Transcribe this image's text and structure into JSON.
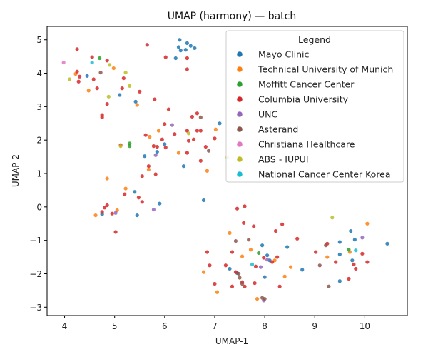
{
  "chart_data": {
    "type": "scatter",
    "title": "UMAP (harmony) — batch",
    "xlabel": "UMAP-1",
    "ylabel": "UMAP-2",
    "xlim": [
      3.65,
      10.85
    ],
    "ylim": [
      -3.25,
      5.4
    ],
    "xticks": [
      4,
      5,
      6,
      7,
      8,
      9,
      10
    ],
    "yticks": [
      -3,
      -2,
      -1,
      0,
      1,
      2,
      3,
      4,
      5
    ],
    "grid": false,
    "legend": {
      "title": "Legend",
      "placement": "top-right"
    },
    "series": [
      {
        "name": "Mayo Clinic",
        "color": "#1f77b4",
        "points": [
          [
            6.3,
            5.0
          ],
          [
            6.32,
            4.68
          ],
          [
            6.45,
            4.9
          ],
          [
            6.52,
            4.82
          ],
          [
            6.6,
            4.75
          ],
          [
            6.22,
            4.45
          ],
          [
            6.42,
            4.7
          ],
          [
            6.28,
            4.78
          ],
          [
            4.45,
            3.92
          ],
          [
            5.1,
            3.35
          ],
          [
            5.42,
            3.15
          ],
          [
            5.6,
            1.52
          ],
          [
            5.85,
            1.65
          ],
          [
            6.38,
            1.22
          ],
          [
            6.78,
            0.2
          ],
          [
            6.0,
            1.88
          ],
          [
            5.9,
            0.1
          ],
          [
            5.4,
            0.45
          ],
          [
            5.45,
            -0.25
          ],
          [
            4.75,
            -0.22
          ],
          [
            7.1,
            2.5
          ],
          [
            7.3,
            -1.85
          ],
          [
            7.45,
            -1.98
          ],
          [
            7.95,
            -1.15
          ],
          [
            8.05,
            -1.45
          ],
          [
            8.45,
            -1.2
          ],
          [
            8.75,
            -1.88
          ],
          [
            9.5,
            -1.05
          ],
          [
            9.5,
            -1.42
          ],
          [
            9.72,
            -0.72
          ],
          [
            9.8,
            -0.98
          ],
          [
            9.75,
            -1.6
          ],
          [
            10.45,
            -1.1
          ],
          [
            9.5,
            -2.22
          ],
          [
            8.0,
            -2.1
          ],
          [
            8.1,
            -1.6
          ]
        ]
      },
      {
        "name": "Technical University of Munich",
        "color": "#ff7f0e",
        "points": [
          [
            4.22,
            3.98
          ],
          [
            4.48,
            3.48
          ],
          [
            4.98,
            4.15
          ],
          [
            5.45,
            3.05
          ],
          [
            5.88,
            2.28
          ],
          [
            5.7,
            2.1
          ],
          [
            6.28,
            1.62
          ],
          [
            6.85,
            1.08
          ],
          [
            7.02,
            2.32
          ],
          [
            4.85,
            0.85
          ],
          [
            5.22,
            0.55
          ],
          [
            5.05,
            -0.1
          ],
          [
            4.62,
            -0.25
          ],
          [
            5.68,
            1.12
          ],
          [
            7.05,
            -2.55
          ],
          [
            7.3,
            -0.78
          ],
          [
            7.55,
            -1.48
          ],
          [
            7.72,
            -1.28
          ],
          [
            7.85,
            -2.75
          ],
          [
            8.2,
            -1.6
          ],
          [
            8.4,
            -2.08
          ],
          [
            8.52,
            -1.8
          ],
          [
            9.25,
            -1.5
          ],
          [
            9.7,
            -1.35
          ],
          [
            10.05,
            -0.5
          ],
          [
            6.78,
            -1.95
          ]
        ]
      },
      {
        "name": "Moffitt Cancer Center",
        "color": "#2ca02c",
        "points": [
          [
            4.7,
            4.45
          ],
          [
            5.3,
            1.9
          ],
          [
            5.3,
            1.82
          ],
          [
            7.88,
            -1.38
          ],
          [
            9.68,
            -1.28
          ]
        ]
      },
      {
        "name": "Columbia University",
        "color": "#d62728",
        "points": [
          [
            4.25,
            4.72
          ],
          [
            4.55,
            4.48
          ],
          [
            4.85,
            4.38
          ],
          [
            4.25,
            4.05
          ],
          [
            4.3,
            3.9
          ],
          [
            4.58,
            3.82
          ],
          [
            4.28,
            3.75
          ],
          [
            4.65,
            3.55
          ],
          [
            5.15,
            3.55
          ],
          [
            5.18,
            3.85
          ],
          [
            5.5,
            3.45
          ],
          [
            5.8,
            3.22
          ],
          [
            4.85,
            3.08
          ],
          [
            4.75,
            2.75
          ],
          [
            4.75,
            2.68
          ],
          [
            6.08,
            2.92
          ],
          [
            6.55,
            2.7
          ],
          [
            6.65,
            2.8
          ],
          [
            6.0,
            2.48
          ],
          [
            6.2,
            2.18
          ],
          [
            6.45,
            2.28
          ],
          [
            6.65,
            2.28
          ],
          [
            6.72,
            2.28
          ],
          [
            5.62,
            2.15
          ],
          [
            5.95,
            2.02
          ],
          [
            6.58,
            2.02
          ],
          [
            6.48,
            1.98
          ],
          [
            7.0,
            2.05
          ],
          [
            6.82,
            1.8
          ],
          [
            5.85,
            1.8
          ],
          [
            6.02,
            1.78
          ],
          [
            5.78,
            1.82
          ],
          [
            5.12,
            1.85
          ],
          [
            5.68,
            1.22
          ],
          [
            5.82,
            0.98
          ],
          [
            5.55,
            0.92
          ],
          [
            5.2,
            0.38
          ],
          [
            5.48,
            0.28
          ],
          [
            5.55,
            0.15
          ],
          [
            4.85,
            0.05
          ],
          [
            4.8,
            -0.02
          ],
          [
            4.95,
            -0.2
          ],
          [
            4.75,
            -0.15
          ],
          [
            5.02,
            -0.75
          ],
          [
            5.65,
            4.85
          ],
          [
            6.02,
            4.48
          ],
          [
            6.45,
            4.45
          ],
          [
            6.45,
            4.12
          ],
          [
            6.72,
            1.38
          ],
          [
            6.45,
            1.62
          ],
          [
            7.45,
            -0.05
          ],
          [
            7.6,
            0.02
          ],
          [
            7.58,
            -0.48
          ],
          [
            7.78,
            -0.58
          ],
          [
            8.22,
            -0.72
          ],
          [
            8.35,
            -0.52
          ],
          [
            8.65,
            -0.95
          ],
          [
            7.35,
            -1.35
          ],
          [
            6.85,
            -1.35
          ],
          [
            6.9,
            -1.75
          ],
          [
            7.22,
            -1.75
          ],
          [
            7.42,
            -1.95
          ],
          [
            7.82,
            -1.78
          ],
          [
            7.98,
            -1.52
          ],
          [
            8.15,
            -1.65
          ],
          [
            8.25,
            -1.5
          ],
          [
            7.55,
            -2.25
          ],
          [
            7.6,
            -2.38
          ],
          [
            7.8,
            -2.28
          ],
          [
            7.35,
            -2.38
          ],
          [
            7.0,
            -2.3
          ],
          [
            8.3,
            -2.38
          ],
          [
            9.02,
            -1.35
          ],
          [
            9.25,
            -1.1
          ],
          [
            9.42,
            -1.65
          ],
          [
            9.78,
            -1.72
          ],
          [
            9.82,
            -1.85
          ],
          [
            9.95,
            -1.4
          ],
          [
            10.05,
            -1.65
          ],
          [
            9.68,
            -2.15
          ]
        ]
      },
      {
        "name": "UNC",
        "color": "#9467bd",
        "points": [
          [
            5.02,
            -0.18
          ],
          [
            5.78,
            -0.08
          ],
          [
            5.82,
            1.55
          ],
          [
            7.92,
            -1.8
          ],
          [
            7.98,
            -2.8
          ],
          [
            8.05,
            -1.58
          ],
          [
            9.95,
            -0.92
          ],
          [
            6.15,
            2.45
          ]
        ]
      },
      {
        "name": "Asterand",
        "color": "#8c564b",
        "points": [
          [
            4.72,
            4.02
          ],
          [
            6.72,
            2.68
          ],
          [
            6.88,
            1.68
          ],
          [
            7.42,
            -1.02
          ],
          [
            7.68,
            -0.98
          ],
          [
            7.48,
            -2.0
          ],
          [
            7.5,
            -2.12
          ],
          [
            7.55,
            -2.3
          ],
          [
            7.95,
            -2.72
          ],
          [
            8.0,
            -2.75
          ],
          [
            9.1,
            -1.75
          ],
          [
            9.22,
            -1.15
          ],
          [
            9.28,
            -2.38
          ]
        ]
      },
      {
        "name": "Christiana Healthcare",
        "color": "#e377c2",
        "points": [
          [
            3.98,
            4.32
          ]
        ]
      },
      {
        "name": "ABS - IUPUI",
        "color": "#bcbd22",
        "points": [
          [
            4.1,
            3.82
          ],
          [
            4.88,
            3.3
          ],
          [
            4.9,
            4.25
          ],
          [
            5.22,
            4.02
          ],
          [
            5.3,
            3.62
          ],
          [
            5.12,
            1.82
          ],
          [
            6.48,
            2.2
          ],
          [
            7.25,
            1.48
          ],
          [
            9.35,
            -0.32
          ]
        ]
      },
      {
        "name": "National Cancer Center Korea",
        "color": "#17becf",
        "points": [
          [
            4.55,
            4.32
          ],
          [
            7.75,
            -1.72
          ],
          [
            9.82,
            -1.3
          ]
        ]
      }
    ]
  }
}
